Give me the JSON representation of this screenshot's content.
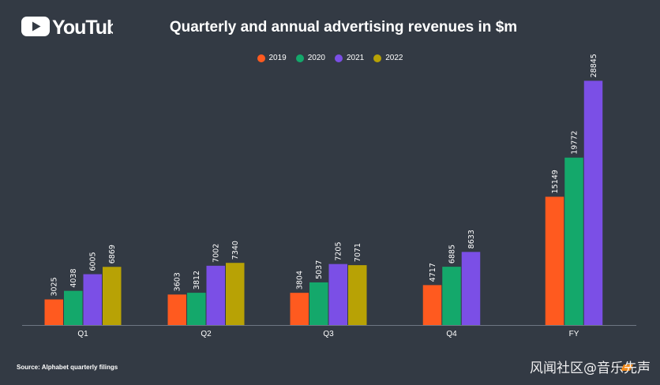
{
  "brand": {
    "name": "YouTube",
    "logo_color": "#ffffff"
  },
  "header": {
    "title": "Quarterly and annual advertising revenues in $m"
  },
  "colors": {
    "background": "#333a44",
    "series": [
      "#ff5a1f",
      "#14a86b",
      "#7b4fe6",
      "#b8a205"
    ],
    "axis": "#6e7682"
  },
  "chart_data": {
    "type": "bar",
    "title": "Quarterly and annual advertising revenues in $m",
    "xlabel": "",
    "ylabel": "",
    "ylim": [
      0,
      30000
    ],
    "grid": false,
    "legend_position": "top-center",
    "categories": [
      "Q1",
      "Q2",
      "Q3",
      "Q4",
      "FY"
    ],
    "series": [
      {
        "name": "2019",
        "values": [
          3025,
          3603,
          3804,
          4717,
          15149
        ]
      },
      {
        "name": "2020",
        "values": [
          4038,
          3812,
          5037,
          6885,
          19772
        ]
      },
      {
        "name": "2021",
        "values": [
          6005,
          7002,
          7205,
          8633,
          28845
        ]
      },
      {
        "name": "2022",
        "values": [
          6869,
          7340,
          7071,
          null,
          null
        ]
      }
    ]
  },
  "footer": {
    "source": "Source: Alphabet quarterly filings",
    "watermark": "风闻社区@音乐先声"
  }
}
